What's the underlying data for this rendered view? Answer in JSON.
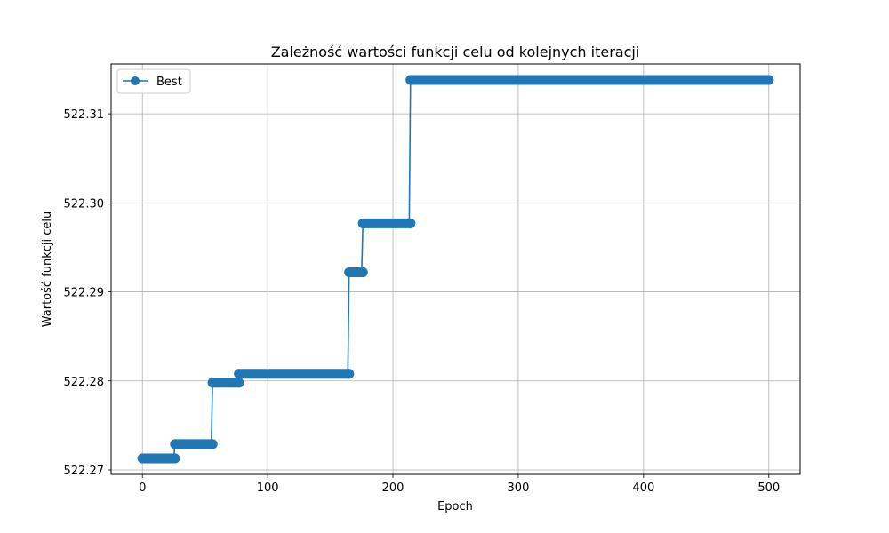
{
  "chart_data": {
    "type": "line",
    "title": "Zależność wartości funkcji celu od kolejnych iteracji",
    "xlabel": "Epoch",
    "ylabel": "Wartość funkcji celu",
    "xlim": [
      -25,
      525
    ],
    "ylim": [
      522.2695,
      522.3156
    ],
    "xticks": [
      0,
      100,
      200,
      300,
      400,
      500
    ],
    "yticks": [
      522.27,
      522.28,
      522.29,
      522.3,
      522.31
    ],
    "ytick_labels": [
      "522.27",
      "522.28",
      "522.29",
      "522.30",
      "522.31"
    ],
    "grid": true,
    "legend_position": "top-left",
    "series": [
      {
        "name": "Best",
        "color": "#1f77b4",
        "marker": "circle",
        "segments": [
          {
            "x_start": 0,
            "x_end": 26,
            "y": 522.2713
          },
          {
            "x_start": 26,
            "x_end": 56,
            "y": 522.2729
          },
          {
            "x_start": 56,
            "x_end": 77,
            "y": 522.2798
          },
          {
            "x_start": 77,
            "x_end": 165,
            "y": 522.2808
          },
          {
            "x_start": 165,
            "x_end": 176,
            "y": 522.2922
          },
          {
            "x_start": 176,
            "x_end": 214,
            "y": 522.2977
          },
          {
            "x_start": 214,
            "x_end": 500,
            "y": 522.3138
          }
        ]
      }
    ]
  }
}
